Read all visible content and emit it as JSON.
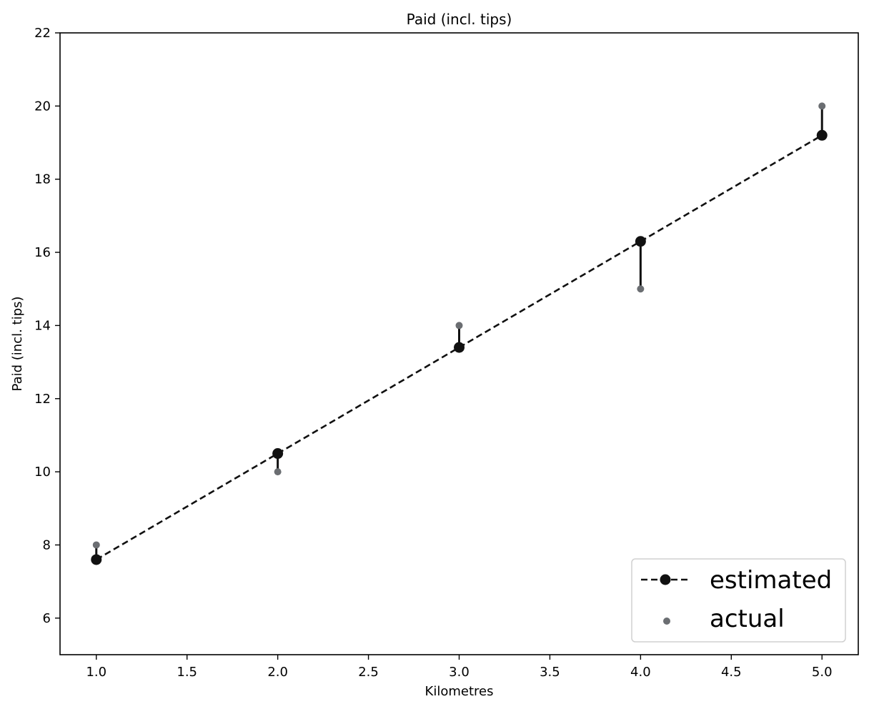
{
  "chart_data": {
    "type": "line",
    "title": "Paid (incl. tips)",
    "xlabel": "Kilometres",
    "ylabel": "Paid (incl. tips)",
    "xlim": [
      0.8,
      5.2
    ],
    "ylim": [
      5,
      22
    ],
    "xticks": [
      1.0,
      1.5,
      2.0,
      2.5,
      3.0,
      3.5,
      4.0,
      4.5,
      5.0
    ],
    "xtick_labels": [
      "1.0",
      "1.5",
      "2.0",
      "2.5",
      "3.0",
      "3.5",
      "4.0",
      "4.5",
      "5.0"
    ],
    "yticks": [
      6,
      8,
      10,
      12,
      14,
      16,
      18,
      20,
      22
    ],
    "ytick_labels": [
      "6",
      "8",
      "10",
      "12",
      "14",
      "16",
      "18",
      "20",
      "22"
    ],
    "grid": false,
    "legend_position": "lower-right",
    "series": [
      {
        "name": "estimated",
        "kind": "line",
        "style": "dashed-with-markers",
        "color": "#111111",
        "x": [
          1,
          2,
          3,
          4,
          5
        ],
        "y": [
          7.6,
          10.5,
          13.4,
          16.3,
          19.2
        ]
      },
      {
        "name": "actual",
        "kind": "scatter",
        "color": "#6b6e72",
        "x": [
          1,
          2,
          3,
          4,
          5
        ],
        "y": [
          8,
          10,
          14,
          15,
          20
        ]
      }
    ],
    "residual_color": "#111111"
  }
}
